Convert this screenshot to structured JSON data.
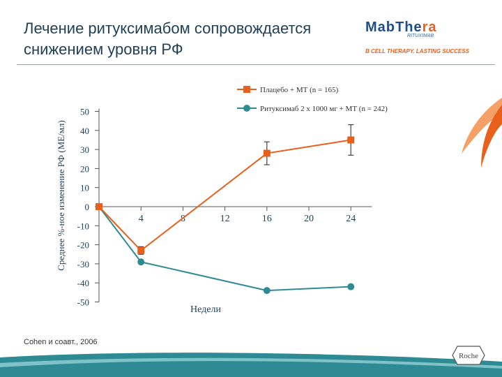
{
  "header": {
    "title": "Лечение ритуксимабом сопровождается снижением уровня РФ",
    "logo_main_a": "MabThe",
    "logo_main_b": "ra",
    "logo_sub": "RITUXIMAB",
    "logo_tagline": "B CELL THERAPY. LASTING SUCCESS"
  },
  "footer": {
    "citation": "Cohen и соавт., 2006",
    "company": "Roche"
  },
  "colors": {
    "placebo": "#e8601c",
    "rituximab": "#2e8b94",
    "accent": "#e8601c",
    "brand": "#1f4e8a"
  },
  "chart_data": {
    "type": "line",
    "title": "",
    "xlabel": "Недели",
    "ylabel": "Среднее %-ное изменение РФ (МЕ/мл)",
    "x": [
      0,
      4,
      16,
      24
    ],
    "xticks": [
      "4",
      "8",
      "12",
      "16",
      "20",
      "24"
    ],
    "xtick_values": [
      4,
      8,
      12,
      16,
      20,
      24
    ],
    "yticks": [
      "50",
      "40",
      "30",
      "20",
      "10",
      "0",
      "-10",
      "-20",
      "-30",
      "-40",
      "-50"
    ],
    "ytick_values": [
      50,
      40,
      30,
      20,
      10,
      0,
      -10,
      -20,
      -30,
      -40,
      -50
    ],
    "xlim": [
      0,
      26
    ],
    "ylim": [
      -50,
      50
    ],
    "legend_position": "top-right",
    "series": [
      {
        "name": "Плацебо + МТ (n = 165)",
        "marker": "square",
        "values": [
          0,
          -23,
          28,
          35
        ],
        "error": [
          0,
          2,
          6,
          8
        ]
      },
      {
        "name": "Ритуксимаб 2 х 1000 мг + МТ (n = 242)",
        "marker": "circle",
        "values": [
          0,
          -29,
          -44,
          -42
        ],
        "error": [
          0,
          0,
          0,
          0
        ]
      }
    ]
  }
}
